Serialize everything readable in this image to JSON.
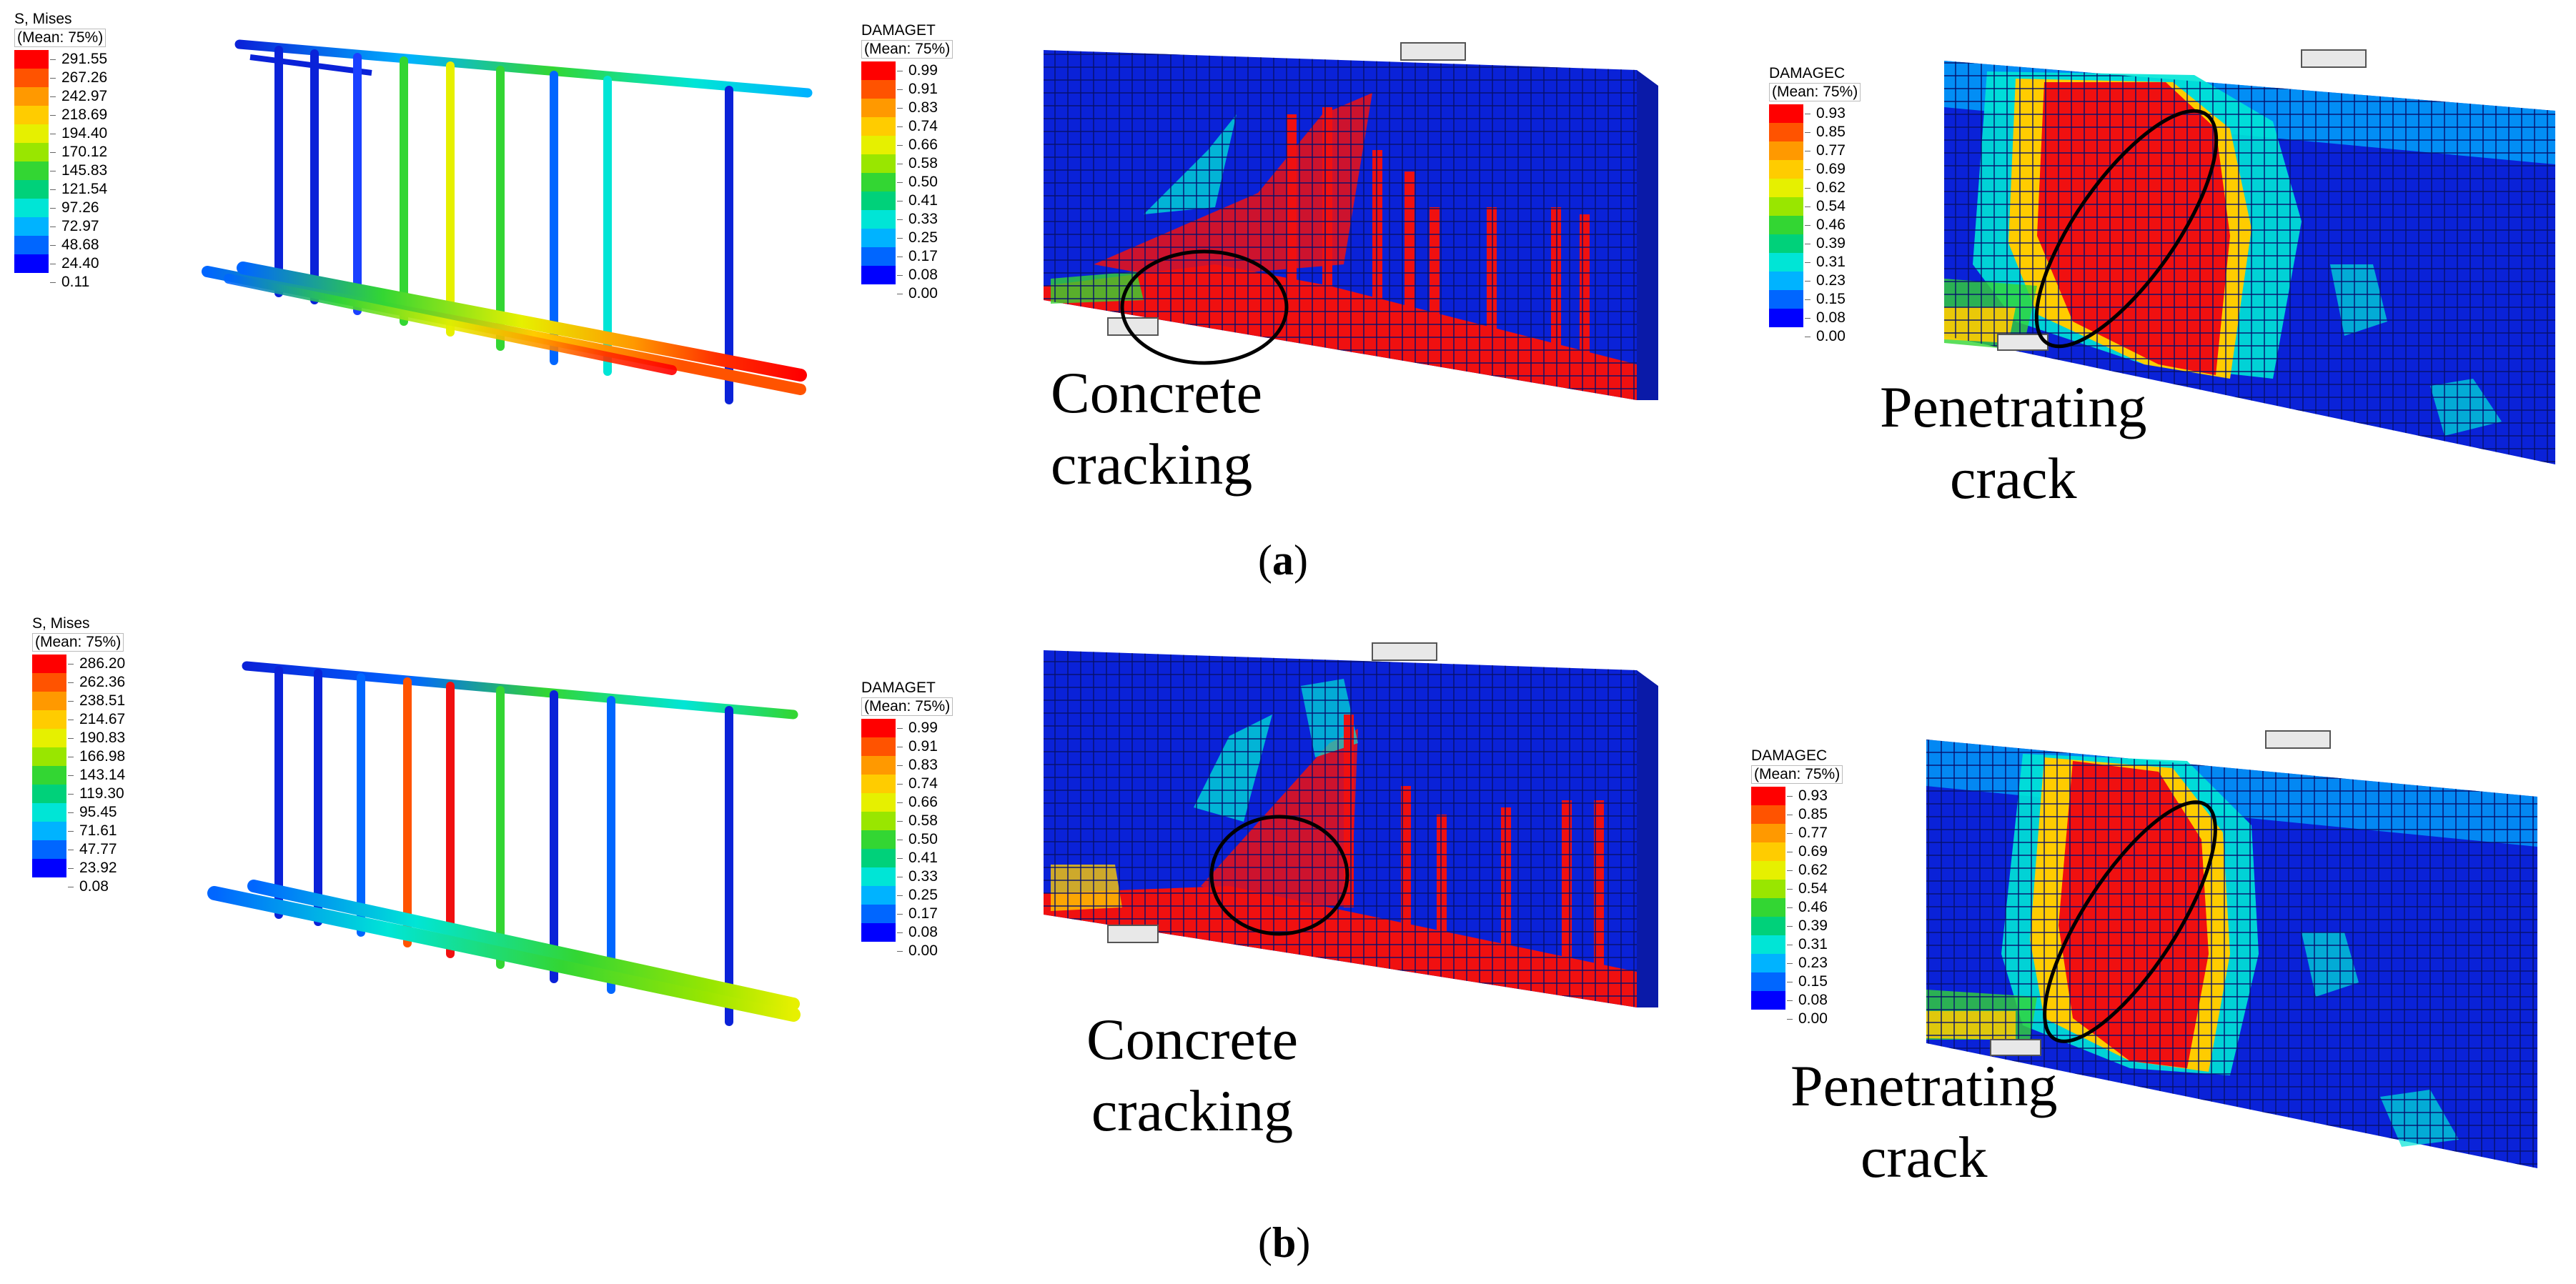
{
  "panels": [
    {
      "id": "a",
      "label": "(a)",
      "label_letter": "a",
      "mises_legend": {
        "title": "S, Mises",
        "mean": "(Mean: 75%)",
        "values": [
          "291.55",
          "267.26",
          "242.97",
          "218.69",
          "194.40",
          "170.12",
          "145.83",
          "121.54",
          "97.26",
          "72.97",
          "48.68",
          "24.40",
          "0.11"
        ]
      },
      "damaget_legend": {
        "title": "DAMAGET",
        "mean": "(Mean: 75%)",
        "values": [
          "0.99",
          "0.91",
          "0.83",
          "0.74",
          "0.66",
          "0.58",
          "0.50",
          "0.41",
          "0.33",
          "0.25",
          "0.17",
          "0.08",
          "0.00"
        ]
      },
      "damagec_legend": {
        "title": "DAMAGEC",
        "mean": "(Mean: 75%)",
        "values": [
          "0.93",
          "0.85",
          "0.77",
          "0.69",
          "0.62",
          "0.54",
          "0.46",
          "0.39",
          "0.31",
          "0.23",
          "0.15",
          "0.08",
          "0.00"
        ]
      },
      "annotation_tension": [
        "Concrete",
        "cracking"
      ],
      "annotation_compression": [
        "Penetrating",
        "crack"
      ]
    },
    {
      "id": "b",
      "label": "(b)",
      "label_letter": "b",
      "mises_legend": {
        "title": "S, Mises",
        "mean": "(Mean: 75%)",
        "values": [
          "286.20",
          "262.36",
          "238.51",
          "214.67",
          "190.83",
          "166.98",
          "143.14",
          "119.30",
          "95.45",
          "71.61",
          "47.77",
          "23.92",
          "0.08"
        ]
      },
      "damaget_legend": {
        "title": "DAMAGET",
        "mean": "(Mean: 75%)",
        "values": [
          "0.99",
          "0.91",
          "0.83",
          "0.74",
          "0.66",
          "0.58",
          "0.50",
          "0.41",
          "0.33",
          "0.25",
          "0.17",
          "0.08",
          "0.00"
        ]
      },
      "damagec_legend": {
        "title": "DAMAGEC",
        "mean": "(Mean: 75%)",
        "values": [
          "0.93",
          "0.85",
          "0.77",
          "0.69",
          "0.62",
          "0.54",
          "0.46",
          "0.39",
          "0.31",
          "0.23",
          "0.15",
          "0.08",
          "0.00"
        ]
      },
      "annotation_tension": [
        "Concrete",
        "cracking"
      ],
      "annotation_compression": [
        "Penetrating",
        "crack"
      ]
    }
  ],
  "colormap": [
    "#ff0000",
    "#ff5300",
    "#ff9900",
    "#ffcc00",
    "#e6f000",
    "#99e600",
    "#33d633",
    "#00d17a",
    "#00e5d6",
    "#00b3ff",
    "#0066ff",
    "#0000ff"
  ],
  "colors": {
    "element_blue": "#0a22d8",
    "mesh_line": "#06106a",
    "crack_red": "#f01010"
  }
}
